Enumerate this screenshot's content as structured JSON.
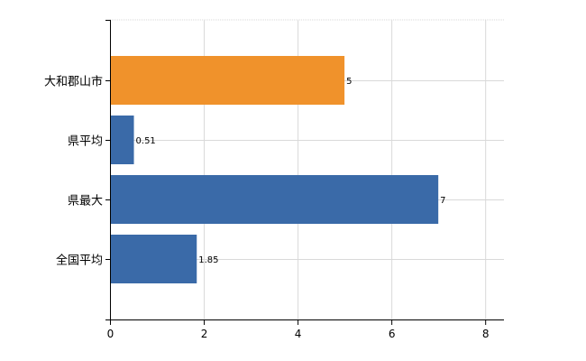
{
  "chart_data": {
    "type": "bar",
    "orientation": "horizontal",
    "categories": [
      "大和郡山市",
      "県平均",
      "県最大",
      "全国平均"
    ],
    "values": [
      5,
      0.51,
      7,
      1.85
    ],
    "value_labels": [
      "5",
      "0.51",
      "7",
      "1.85"
    ],
    "bar_colors": [
      "#f0922b",
      "#3a6aa8",
      "#3a6aa8",
      "#3a6aa8"
    ],
    "xlim": [
      0,
      8.4
    ],
    "x_ticks": [
      0,
      2,
      4,
      6,
      8
    ],
    "x_tick_labels": [
      "0",
      "2",
      "4",
      "6",
      "8"
    ],
    "grid": true,
    "legend": "none",
    "title": "",
    "xlabel": "",
    "ylabel": ""
  }
}
